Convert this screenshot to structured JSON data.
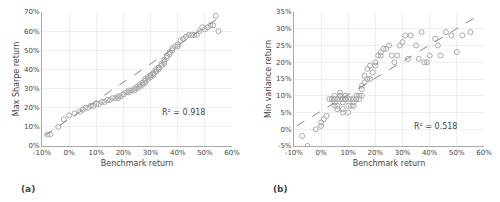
{
  "chart_data": [
    {
      "type": "scatter",
      "x_label": "Benchmark return",
      "y_label": "Max Sharpe return",
      "xlim": [
        -0.1,
        0.6
      ],
      "ylim": [
        0.0,
        0.7
      ],
      "xticks": [
        {
          "value": -0.1,
          "label": "-10%"
        },
        {
          "value": 0.0,
          "label": "0%"
        },
        {
          "value": 0.1,
          "label": "10%"
        },
        {
          "value": 0.2,
          "label": "20%"
        },
        {
          "value": 0.3,
          "label": "30%"
        },
        {
          "value": 0.4,
          "label": "40%"
        },
        {
          "value": 0.5,
          "label": "50%"
        },
        {
          "value": 0.6,
          "label": "60%"
        }
      ],
      "yticks": [
        {
          "value": 0.0,
          "label": "0%"
        },
        {
          "value": 0.1,
          "label": "10%"
        },
        {
          "value": 0.2,
          "label": "20%"
        },
        {
          "value": 0.3,
          "label": "30%"
        },
        {
          "value": 0.4,
          "label": "40%"
        },
        {
          "value": 0.5,
          "label": "50%"
        },
        {
          "value": 0.6,
          "label": "60%"
        },
        {
          "value": 0.7,
          "label": "70%"
        }
      ],
      "grid": true,
      "annotations": [
        "R² = 0.918",
        "(a)"
      ],
      "series": [
        {
          "type": "scatter",
          "marker": "circle-open",
          "color": "#aaaaaa",
          "x": [
            -0.08,
            -0.07,
            -0.04,
            -0.02,
            0.0,
            0.02,
            0.04,
            0.05,
            0.06,
            0.07,
            0.08,
            0.09,
            0.1,
            0.11,
            0.12,
            0.13,
            0.14,
            0.15,
            0.16,
            0.17,
            0.18,
            0.18,
            0.19,
            0.2,
            0.2,
            0.21,
            0.22,
            0.22,
            0.23,
            0.24,
            0.24,
            0.25,
            0.25,
            0.26,
            0.26,
            0.27,
            0.27,
            0.27,
            0.28,
            0.28,
            0.28,
            0.29,
            0.29,
            0.3,
            0.3,
            0.3,
            0.31,
            0.31,
            0.31,
            0.32,
            0.32,
            0.32,
            0.33,
            0.33,
            0.33,
            0.34,
            0.34,
            0.35,
            0.35,
            0.35,
            0.36,
            0.36,
            0.37,
            0.37,
            0.38,
            0.38,
            0.39,
            0.4,
            0.4,
            0.41,
            0.42,
            0.43,
            0.44,
            0.45,
            0.46,
            0.47,
            0.48,
            0.49,
            0.5,
            0.51,
            0.52,
            0.53,
            0.54,
            0.55
          ],
          "values": [
            0.06,
            0.06,
            0.1,
            0.14,
            0.16,
            0.17,
            0.18,
            0.19,
            0.2,
            0.2,
            0.21,
            0.21,
            0.22,
            0.22,
            0.23,
            0.23,
            0.24,
            0.24,
            0.25,
            0.25,
            0.25,
            0.26,
            0.26,
            0.27,
            0.27,
            0.28,
            0.28,
            0.29,
            0.29,
            0.29,
            0.3,
            0.3,
            0.31,
            0.31,
            0.32,
            0.32,
            0.33,
            0.33,
            0.33,
            0.34,
            0.35,
            0.35,
            0.36,
            0.36,
            0.37,
            0.37,
            0.37,
            0.38,
            0.38,
            0.39,
            0.39,
            0.4,
            0.4,
            0.41,
            0.41,
            0.42,
            0.43,
            0.43,
            0.44,
            0.45,
            0.46,
            0.47,
            0.48,
            0.49,
            0.5,
            0.51,
            0.52,
            0.52,
            0.53,
            0.55,
            0.56,
            0.57,
            0.58,
            0.58,
            0.58,
            0.58,
            0.6,
            0.62,
            0.61,
            0.62,
            0.63,
            0.63,
            0.68,
            0.6
          ]
        },
        {
          "type": "line",
          "line_style": "dashed",
          "color": "#888888",
          "x": [
            -0.09,
            0.56
          ],
          "values": [
            0.055,
            0.678
          ]
        }
      ]
    },
    {
      "type": "scatter",
      "x_label": "Benchmark return",
      "y_label": "Min variance return",
      "xlim": [
        -0.1,
        0.6
      ],
      "ylim": [
        -0.05,
        0.35
      ],
      "xticks": [
        {
          "value": -0.1,
          "label": "-10%"
        },
        {
          "value": 0.0,
          "label": "0%"
        },
        {
          "value": 0.1,
          "label": "10%"
        },
        {
          "value": 0.2,
          "label": "20%"
        },
        {
          "value": 0.3,
          "label": "30%"
        },
        {
          "value": 0.4,
          "label": "40%"
        },
        {
          "value": 0.5,
          "label": "50%"
        },
        {
          "value": 0.6,
          "label": "60%"
        }
      ],
      "yticks": [
        {
          "value": -0.05,
          "label": "-5%"
        },
        {
          "value": 0.0,
          "label": "0%"
        },
        {
          "value": 0.05,
          "label": "5%"
        },
        {
          "value": 0.1,
          "label": "10%"
        },
        {
          "value": 0.15,
          "label": "15%"
        },
        {
          "value": 0.2,
          "label": "20%"
        },
        {
          "value": 0.25,
          "label": "25%"
        },
        {
          "value": 0.3,
          "label": "30%"
        },
        {
          "value": 0.35,
          "label": "35%"
        }
      ],
      "grid": true,
      "annotations": [
        "R² = 0.518",
        "(b)"
      ],
      "series": [
        {
          "type": "scatter",
          "marker": "circle-open",
          "color": "#aaaaaa",
          "x": [
            -0.07,
            -0.05,
            -0.02,
            0.0,
            0.0,
            0.01,
            0.02,
            0.03,
            0.04,
            0.04,
            0.05,
            0.05,
            0.05,
            0.05,
            0.06,
            0.06,
            0.06,
            0.07,
            0.07,
            0.07,
            0.07,
            0.08,
            0.08,
            0.08,
            0.08,
            0.09,
            0.09,
            0.09,
            0.09,
            0.1,
            0.1,
            0.1,
            0.11,
            0.11,
            0.12,
            0.12,
            0.12,
            0.13,
            0.13,
            0.14,
            0.14,
            0.15,
            0.15,
            0.15,
            0.16,
            0.16,
            0.17,
            0.17,
            0.18,
            0.18,
            0.19,
            0.2,
            0.2,
            0.21,
            0.22,
            0.22,
            0.23,
            0.24,
            0.25,
            0.26,
            0.27,
            0.28,
            0.29,
            0.3,
            0.31,
            0.32,
            0.33,
            0.35,
            0.36,
            0.37,
            0.38,
            0.39,
            0.4,
            0.42,
            0.43,
            0.44,
            0.46,
            0.48,
            0.5,
            0.52,
            0.55
          ],
          "values": [
            -0.02,
            -0.05,
            0.0,
            0.01,
            0.02,
            0.03,
            0.04,
            0.09,
            0.09,
            0.09,
            0.07,
            0.08,
            0.09,
            0.1,
            0.06,
            0.07,
            0.09,
            0.09,
            0.1,
            0.1,
            0.11,
            0.05,
            0.06,
            0.08,
            0.09,
            0.09,
            0.09,
            0.1,
            0.1,
            0.05,
            0.07,
            0.09,
            0.07,
            0.09,
            0.07,
            0.08,
            0.09,
            0.09,
            0.1,
            0.09,
            0.1,
            0.1,
            0.12,
            0.13,
            0.14,
            0.16,
            0.15,
            0.18,
            0.15,
            0.19,
            0.17,
            0.19,
            0.2,
            0.22,
            0.22,
            0.23,
            0.24,
            0.24,
            0.25,
            0.22,
            0.2,
            0.22,
            0.25,
            0.26,
            0.28,
            0.21,
            0.28,
            0.25,
            0.21,
            0.29,
            0.2,
            0.2,
            0.22,
            0.27,
            0.25,
            0.22,
            0.29,
            0.28,
            0.23,
            0.28,
            0.29
          ]
        },
        {
          "type": "line",
          "line_style": "dashed",
          "color": "#888888",
          "x": [
            -0.09,
            0.58
          ],
          "values": [
            0.01,
            0.34
          ]
        }
      ]
    }
  ]
}
